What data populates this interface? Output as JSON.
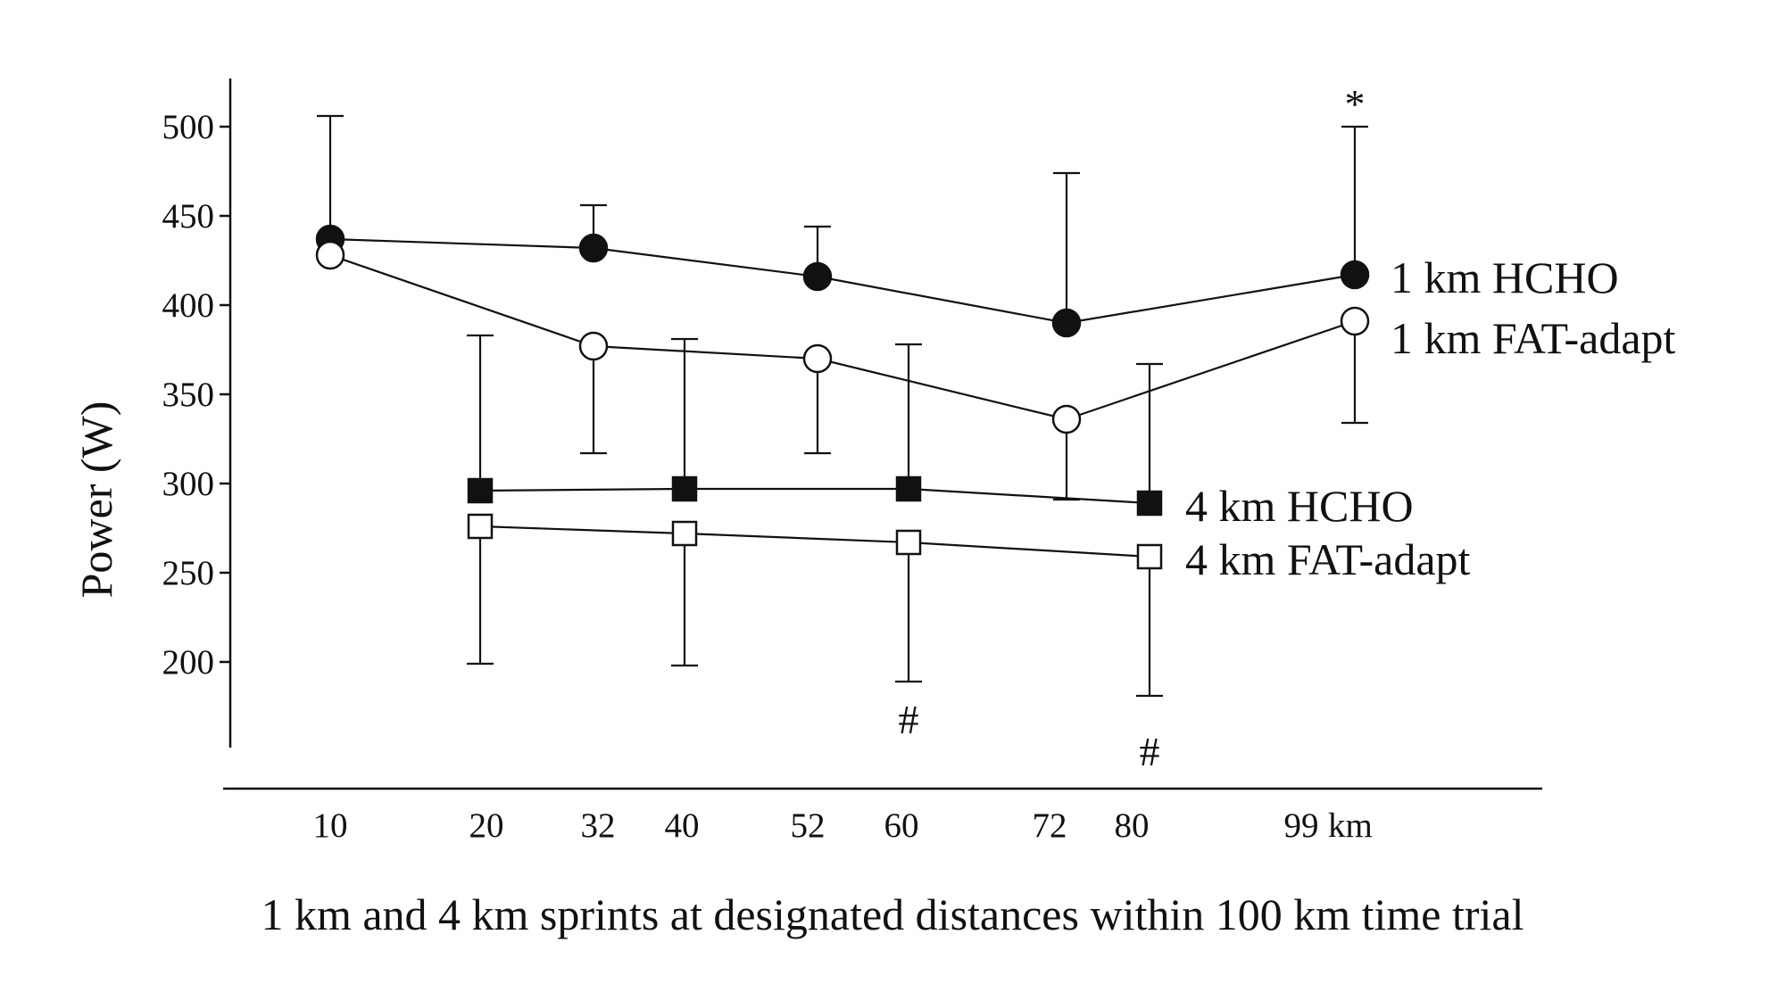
{
  "chart_data": {
    "type": "line",
    "title": "",
    "xlabel": "1 km and 4 km sprints at designated distances within 100 km time trial",
    "ylabel": "Power (W)",
    "ylim": [
      120,
      520
    ],
    "yticks": [
      200,
      250,
      300,
      350,
      400,
      450,
      500
    ],
    "x_tick_labels": [
      "10",
      "20",
      "32",
      "40",
      "52",
      "60",
      "72",
      "80",
      "99"
    ],
    "x_unit_label": "km",
    "grid": false,
    "legend_position": "right, inline labels",
    "series": [
      {
        "name": "1 km HCHO",
        "marker": "filled-circle",
        "x": [
          10,
          32,
          52,
          72,
          99
        ],
        "values": [
          437,
          432,
          416,
          390,
          417
        ],
        "error_upper": [
          506,
          456,
          444,
          474,
          500
        ],
        "error_lower": [
          null,
          null,
          null,
          null,
          null
        ]
      },
      {
        "name": "1 km FAT-adapt",
        "marker": "open-circle",
        "x": [
          10,
          32,
          52,
          72,
          99
        ],
        "values": [
          428,
          377,
          370,
          336,
          391
        ],
        "error_upper": [
          null,
          null,
          null,
          null,
          null
        ],
        "error_lower": [
          null,
          317,
          317,
          291,
          334
        ]
      },
      {
        "name": "4 km HCHO",
        "marker": "filled-square",
        "x": [
          20,
          40,
          60,
          80
        ],
        "values": [
          296,
          297,
          297,
          289
        ],
        "error_upper": [
          383,
          381,
          378,
          367
        ],
        "error_lower": [
          null,
          null,
          null,
          null
        ]
      },
      {
        "name": "4 km FAT-adapt",
        "marker": "open-square",
        "x": [
          20,
          40,
          60,
          80
        ],
        "values": [
          276,
          272,
          267,
          259
        ],
        "error_upper": [
          null,
          null,
          null,
          null
        ],
        "error_lower": [
          199,
          198,
          189,
          181
        ]
      }
    ],
    "annotations": [
      {
        "text": "*",
        "x": 99,
        "y": 513
      },
      {
        "text": "#",
        "x": 60,
        "y": 168
      },
      {
        "text": "#",
        "x": 80,
        "y": 150
      }
    ]
  }
}
